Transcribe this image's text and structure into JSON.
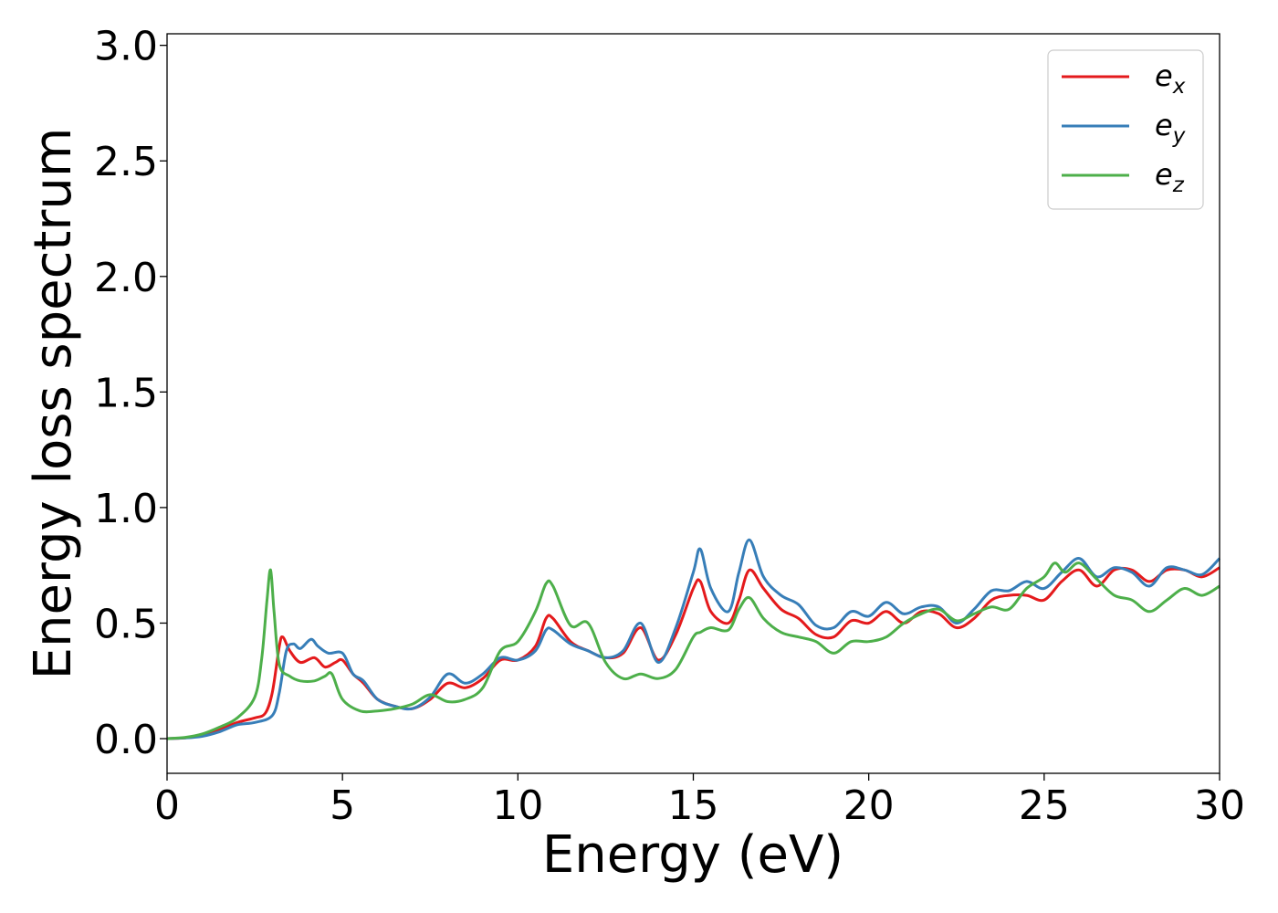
{
  "chart_data": {
    "type": "line",
    "title": "",
    "xlabel": "Energy (eV)",
    "ylabel": "Energy loss spectrum",
    "xlim": [
      0,
      30
    ],
    "ylim": [
      -0.15,
      3.05
    ],
    "xticks": [
      0,
      5,
      10,
      15,
      20,
      25,
      30
    ],
    "xtick_labels": [
      "0",
      "5",
      "10",
      "15",
      "20",
      "25",
      "30"
    ],
    "yticks": [
      0.0,
      0.5,
      1.0,
      1.5,
      2.0,
      2.5,
      3.0
    ],
    "ytick_labels": [
      "0.0",
      "0.5",
      "1.0",
      "1.5",
      "2.0",
      "2.5",
      "3.0"
    ],
    "grid": false,
    "legend_position": "top-right",
    "series": [
      {
        "name": "e",
        "subscript": "x",
        "color": "#e41a1c",
        "points": [
          [
            0,
            0
          ],
          [
            0.5,
            0.003
          ],
          [
            1,
            0.015
          ],
          [
            1.5,
            0.04
          ],
          [
            2,
            0.07
          ],
          [
            2.5,
            0.09
          ],
          [
            2.8,
            0.11
          ],
          [
            3.0,
            0.2
          ],
          [
            3.2,
            0.4
          ],
          [
            3.3,
            0.44
          ],
          [
            3.5,
            0.38
          ],
          [
            3.8,
            0.33
          ],
          [
            4.2,
            0.35
          ],
          [
            4.5,
            0.31
          ],
          [
            4.8,
            0.33
          ],
          [
            5.0,
            0.34
          ],
          [
            5.3,
            0.28
          ],
          [
            5.6,
            0.24
          ],
          [
            6.0,
            0.17
          ],
          [
            6.5,
            0.14
          ],
          [
            7.0,
            0.13
          ],
          [
            7.5,
            0.17
          ],
          [
            8.0,
            0.24
          ],
          [
            8.5,
            0.22
          ],
          [
            9.0,
            0.26
          ],
          [
            9.5,
            0.34
          ],
          [
            10,
            0.34
          ],
          [
            10.5,
            0.4
          ],
          [
            10.8,
            0.52
          ],
          [
            11.0,
            0.52
          ],
          [
            11.5,
            0.42
          ],
          [
            12,
            0.38
          ],
          [
            12.5,
            0.35
          ],
          [
            13,
            0.37
          ],
          [
            13.5,
            0.48
          ],
          [
            14,
            0.34
          ],
          [
            14.5,
            0.45
          ],
          [
            15,
            0.65
          ],
          [
            15.2,
            0.68
          ],
          [
            15.5,
            0.55
          ],
          [
            16,
            0.5
          ],
          [
            16.3,
            0.6
          ],
          [
            16.6,
            0.73
          ],
          [
            17,
            0.65
          ],
          [
            17.5,
            0.56
          ],
          [
            18,
            0.52
          ],
          [
            18.5,
            0.45
          ],
          [
            19,
            0.44
          ],
          [
            19.5,
            0.51
          ],
          [
            20,
            0.5
          ],
          [
            20.5,
            0.55
          ],
          [
            21,
            0.5
          ],
          [
            21.5,
            0.55
          ],
          [
            22,
            0.54
          ],
          [
            22.5,
            0.48
          ],
          [
            23,
            0.52
          ],
          [
            23.5,
            0.6
          ],
          [
            24,
            0.62
          ],
          [
            24.5,
            0.62
          ],
          [
            25,
            0.6
          ],
          [
            25.5,
            0.68
          ],
          [
            26,
            0.73
          ],
          [
            26.5,
            0.66
          ],
          [
            27,
            0.73
          ],
          [
            27.5,
            0.73
          ],
          [
            28,
            0.68
          ],
          [
            28.5,
            0.73
          ],
          [
            29,
            0.73
          ],
          [
            29.5,
            0.7
          ],
          [
            30,
            0.74
          ]
        ]
      },
      {
        "name": "e",
        "subscript": "y",
        "color": "#377eb8",
        "points": [
          [
            0,
            0
          ],
          [
            0.5,
            0.003
          ],
          [
            1,
            0.01
          ],
          [
            1.5,
            0.03
          ],
          [
            2,
            0.06
          ],
          [
            2.5,
            0.07
          ],
          [
            3.0,
            0.1
          ],
          [
            3.2,
            0.2
          ],
          [
            3.4,
            0.38
          ],
          [
            3.6,
            0.41
          ],
          [
            3.8,
            0.39
          ],
          [
            4.1,
            0.43
          ],
          [
            4.3,
            0.4
          ],
          [
            4.6,
            0.37
          ],
          [
            5.0,
            0.37
          ],
          [
            5.3,
            0.28
          ],
          [
            5.6,
            0.25
          ],
          [
            6.0,
            0.17
          ],
          [
            6.5,
            0.14
          ],
          [
            7.0,
            0.13
          ],
          [
            7.5,
            0.18
          ],
          [
            8.0,
            0.28
          ],
          [
            8.5,
            0.24
          ],
          [
            9.0,
            0.28
          ],
          [
            9.5,
            0.35
          ],
          [
            10,
            0.34
          ],
          [
            10.5,
            0.38
          ],
          [
            10.8,
            0.47
          ],
          [
            11.0,
            0.47
          ],
          [
            11.5,
            0.41
          ],
          [
            12,
            0.38
          ],
          [
            12.5,
            0.35
          ],
          [
            13,
            0.38
          ],
          [
            13.5,
            0.5
          ],
          [
            14,
            0.33
          ],
          [
            14.5,
            0.48
          ],
          [
            15,
            0.72
          ],
          [
            15.2,
            0.82
          ],
          [
            15.5,
            0.65
          ],
          [
            16,
            0.55
          ],
          [
            16.3,
            0.72
          ],
          [
            16.6,
            0.86
          ],
          [
            17,
            0.7
          ],
          [
            17.5,
            0.62
          ],
          [
            18,
            0.58
          ],
          [
            18.5,
            0.49
          ],
          [
            19,
            0.48
          ],
          [
            19.5,
            0.55
          ],
          [
            20,
            0.53
          ],
          [
            20.5,
            0.59
          ],
          [
            21,
            0.54
          ],
          [
            21.5,
            0.57
          ],
          [
            22,
            0.57
          ],
          [
            22.5,
            0.5
          ],
          [
            23,
            0.56
          ],
          [
            23.5,
            0.64
          ],
          [
            24,
            0.64
          ],
          [
            24.5,
            0.68
          ],
          [
            25,
            0.65
          ],
          [
            25.5,
            0.72
          ],
          [
            26,
            0.78
          ],
          [
            26.5,
            0.7
          ],
          [
            27,
            0.74
          ],
          [
            27.5,
            0.72
          ],
          [
            28,
            0.66
          ],
          [
            28.5,
            0.74
          ],
          [
            29,
            0.73
          ],
          [
            29.5,
            0.71
          ],
          [
            30,
            0.78
          ]
        ]
      },
      {
        "name": "e",
        "subscript": "z",
        "color": "#4daf4a",
        "points": [
          [
            0,
            0
          ],
          [
            0.5,
            0.005
          ],
          [
            1,
            0.02
          ],
          [
            1.5,
            0.05
          ],
          [
            2,
            0.09
          ],
          [
            2.5,
            0.18
          ],
          [
            2.7,
            0.35
          ],
          [
            2.85,
            0.6
          ],
          [
            2.95,
            0.73
          ],
          [
            3.05,
            0.55
          ],
          [
            3.2,
            0.32
          ],
          [
            3.5,
            0.27
          ],
          [
            3.8,
            0.25
          ],
          [
            4.2,
            0.25
          ],
          [
            4.5,
            0.27
          ],
          [
            4.7,
            0.28
          ],
          [
            5.0,
            0.17
          ],
          [
            5.5,
            0.12
          ],
          [
            6.0,
            0.12
          ],
          [
            6.5,
            0.13
          ],
          [
            7.0,
            0.15
          ],
          [
            7.5,
            0.19
          ],
          [
            8.0,
            0.16
          ],
          [
            8.5,
            0.17
          ],
          [
            9.0,
            0.22
          ],
          [
            9.5,
            0.38
          ],
          [
            10,
            0.42
          ],
          [
            10.5,
            0.55
          ],
          [
            10.8,
            0.67
          ],
          [
            11.0,
            0.66
          ],
          [
            11.5,
            0.49
          ],
          [
            12,
            0.5
          ],
          [
            12.5,
            0.33
          ],
          [
            13,
            0.26
          ],
          [
            13.5,
            0.28
          ],
          [
            14,
            0.26
          ],
          [
            14.5,
            0.3
          ],
          [
            15,
            0.44
          ],
          [
            15.2,
            0.46
          ],
          [
            15.5,
            0.48
          ],
          [
            16,
            0.47
          ],
          [
            16.3,
            0.56
          ],
          [
            16.6,
            0.61
          ],
          [
            17,
            0.52
          ],
          [
            17.5,
            0.46
          ],
          [
            18,
            0.44
          ],
          [
            18.5,
            0.42
          ],
          [
            19,
            0.37
          ],
          [
            19.5,
            0.42
          ],
          [
            20,
            0.42
          ],
          [
            20.5,
            0.44
          ],
          [
            21,
            0.5
          ],
          [
            21.5,
            0.54
          ],
          [
            22,
            0.56
          ],
          [
            22.5,
            0.51
          ],
          [
            23,
            0.54
          ],
          [
            23.5,
            0.57
          ],
          [
            24,
            0.56
          ],
          [
            24.5,
            0.65
          ],
          [
            25,
            0.7
          ],
          [
            25.3,
            0.76
          ],
          [
            25.6,
            0.72
          ],
          [
            26,
            0.76
          ],
          [
            26.5,
            0.69
          ],
          [
            27,
            0.62
          ],
          [
            27.5,
            0.6
          ],
          [
            28,
            0.55
          ],
          [
            28.5,
            0.6
          ],
          [
            29,
            0.65
          ],
          [
            29.5,
            0.62
          ],
          [
            30,
            0.66
          ]
        ]
      }
    ]
  }
}
